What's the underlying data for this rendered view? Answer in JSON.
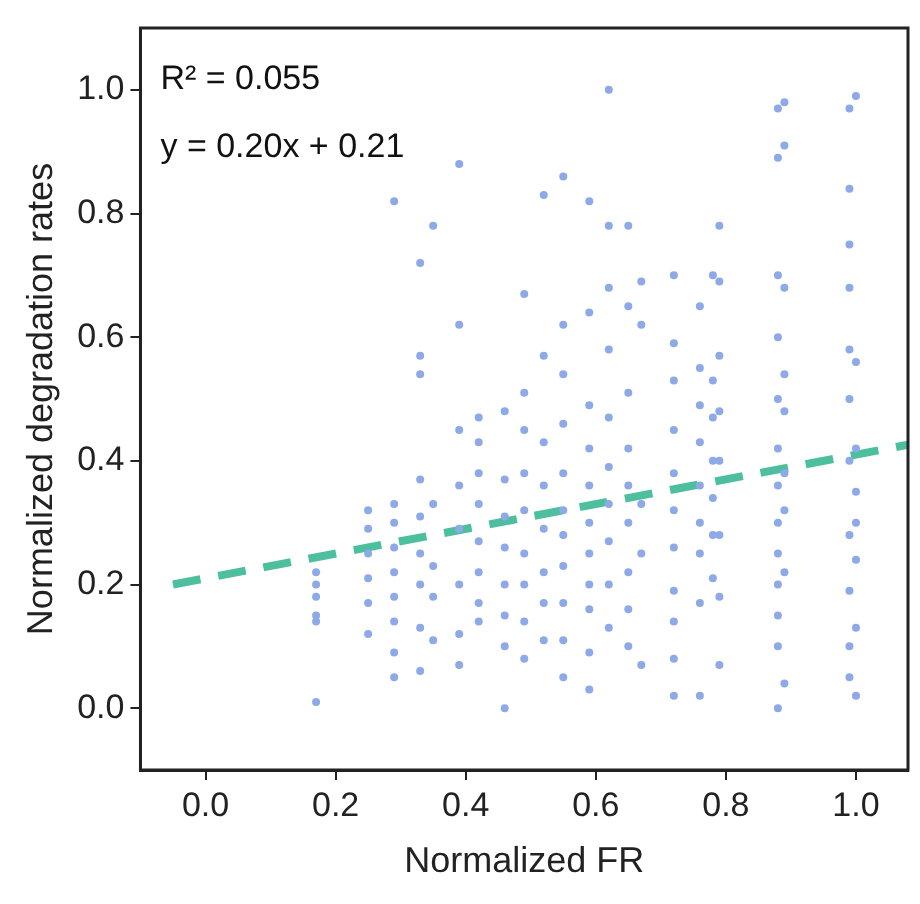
{
  "chart_data": {
    "type": "scatter",
    "xlabel": "Normalized FR",
    "ylabel": "Normalized degradation rates",
    "xlim": [
      -0.1,
      1.08
    ],
    "ylim": [
      -0.1,
      1.1
    ],
    "xticks": [
      {
        "value": 0,
        "label": "0.0"
      },
      0.2,
      0.4,
      0.6,
      0.8,
      {
        "value": 1,
        "label": "1.0"
      }
    ],
    "yticks": [
      {
        "value": 0,
        "label": "0.0"
      },
      0.2,
      0.4,
      0.6,
      0.8,
      {
        "value": 1,
        "label": "1.0"
      }
    ],
    "grid": false,
    "legend": false,
    "marker": "circle",
    "annotations": [
      "R² = 0.055",
      "y = 0.20x + 0.21"
    ],
    "series": [
      {
        "color": "#8ea9e8",
        "x": [
          0.17,
          0.17,
          0.17,
          0.17,
          0.17,
          0.17,
          0.25,
          0.25,
          0.25,
          0.25,
          0.25,
          0.25,
          0.29,
          0.29,
          0.29,
          0.29,
          0.29,
          0.29,
          0.29,
          0.29,
          0.29,
          0.33,
          0.33,
          0.33,
          0.33,
          0.33,
          0.33,
          0.33,
          0.33,
          0.33,
          0.35,
          0.35,
          0.35,
          0.35,
          0.35,
          0.39,
          0.39,
          0.39,
          0.39,
          0.39,
          0.39,
          0.39,
          0.39,
          0.42,
          0.42,
          0.42,
          0.42,
          0.42,
          0.42,
          0.42,
          0.42,
          0.46,
          0.46,
          0.46,
          0.46,
          0.46,
          0.46,
          0.46,
          0.46,
          0.49,
          0.49,
          0.49,
          0.49,
          0.49,
          0.49,
          0.49,
          0.49,
          0.49,
          0.52,
          0.52,
          0.52,
          0.52,
          0.52,
          0.52,
          0.52,
          0.52,
          0.55,
          0.55,
          0.55,
          0.55,
          0.55,
          0.55,
          0.55,
          0.55,
          0.55,
          0.55,
          0.55,
          0.59,
          0.59,
          0.59,
          0.59,
          0.59,
          0.59,
          0.59,
          0.59,
          0.59,
          0.59,
          0.59,
          0.62,
          0.62,
          0.62,
          0.62,
          0.62,
          0.62,
          0.62,
          0.62,
          0.62,
          0.62,
          0.65,
          0.65,
          0.65,
          0.65,
          0.65,
          0.65,
          0.65,
          0.65,
          0.65,
          0.67,
          0.67,
          0.67,
          0.67,
          0.67,
          0.72,
          0.72,
          0.72,
          0.72,
          0.72,
          0.72,
          0.72,
          0.72,
          0.72,
          0.72,
          0.72,
          0.76,
          0.76,
          0.76,
          0.76,
          0.76,
          0.76,
          0.76,
          0.76,
          0.76,
          0.78,
          0.78,
          0.78,
          0.78,
          0.78,
          0.78,
          0.78,
          0.79,
          0.79,
          0.79,
          0.79,
          0.79,
          0.79,
          0.79,
          0.79,
          0.88,
          0.88,
          0.88,
          0.88,
          0.88,
          0.88,
          0.88,
          0.88,
          0.88,
          0.88,
          0.88,
          0.88,
          0.88,
          0.89,
          0.89,
          0.89,
          0.89,
          0.89,
          0.89,
          0.89,
          0.89,
          0.89,
          0.99,
          0.99,
          0.99,
          0.99,
          0.99,
          0.99,
          0.99,
          0.99,
          0.99,
          0.99,
          0.99,
          1.0,
          1.0,
          1.0,
          1.0,
          1.0,
          1.0,
          1.0,
          1.0
        ],
        "values": [
          0.01,
          0.15,
          0.14,
          0.18,
          0.2,
          0.22,
          0.12,
          0.17,
          0.21,
          0.25,
          0.29,
          0.32,
          0.05,
          0.09,
          0.14,
          0.18,
          0.22,
          0.26,
          0.3,
          0.33,
          0.82,
          0.06,
          0.13,
          0.2,
          0.25,
          0.31,
          0.37,
          0.54,
          0.57,
          0.72,
          0.78,
          0.11,
          0.18,
          0.23,
          0.33,
          0.07,
          0.12,
          0.2,
          0.29,
          0.36,
          0.45,
          0.62,
          0.88,
          0.14,
          0.17,
          0.22,
          0.27,
          0.33,
          0.38,
          0.43,
          0.47,
          0.0,
          0.1,
          0.15,
          0.2,
          0.26,
          0.31,
          0.37,
          0.48,
          0.67,
          0.08,
          0.14,
          0.2,
          0.25,
          0.32,
          0.38,
          0.45,
          0.51,
          0.83,
          0.57,
          0.11,
          0.17,
          0.22,
          0.29,
          0.36,
          0.43,
          0.86,
          0.62,
          0.05,
          0.11,
          0.17,
          0.23,
          0.28,
          0.32,
          0.38,
          0.46,
          0.54,
          0.03,
          0.09,
          0.16,
          0.2,
          0.25,
          0.3,
          0.36,
          0.42,
          0.49,
          0.64,
          0.82,
          1.0,
          0.78,
          0.68,
          0.58,
          0.13,
          0.2,
          0.27,
          0.33,
          0.39,
          0.47,
          0.78,
          0.65,
          0.51,
          0.1,
          0.16,
          0.22,
          0.3,
          0.36,
          0.42,
          0.07,
          0.25,
          0.33,
          0.62,
          0.69,
          0.02,
          0.08,
          0.14,
          0.19,
          0.26,
          0.32,
          0.38,
          0.45,
          0.53,
          0.59,
          0.7,
          0.02,
          0.17,
          0.25,
          0.3,
          0.36,
          0.43,
          0.49,
          0.55,
          0.65,
          0.7,
          0.21,
          0.28,
          0.34,
          0.4,
          0.47,
          0.53,
          0.07,
          0.18,
          0.28,
          0.4,
          0.48,
          0.57,
          0.69,
          0.78,
          0.0,
          0.1,
          0.15,
          0.2,
          0.25,
          0.3,
          0.36,
          0.42,
          0.5,
          0.6,
          0.7,
          0.89,
          0.97,
          0.04,
          0.22,
          0.32,
          0.38,
          0.48,
          0.54,
          0.68,
          0.91,
          0.98,
          0.05,
          0.1,
          0.19,
          0.28,
          0.4,
          0.5,
          0.58,
          0.68,
          0.75,
          0.84,
          0.97,
          0.02,
          0.13,
          0.24,
          0.3,
          0.35,
          0.42,
          0.56,
          0.99
        ]
      },
      {
        "type": "line",
        "color": "#4dbf9f",
        "line_style": "dashed",
        "marker": "none",
        "x": [
          -0.05,
          1.08
        ],
        "values": [
          0.2,
          0.426
        ]
      }
    ]
  }
}
